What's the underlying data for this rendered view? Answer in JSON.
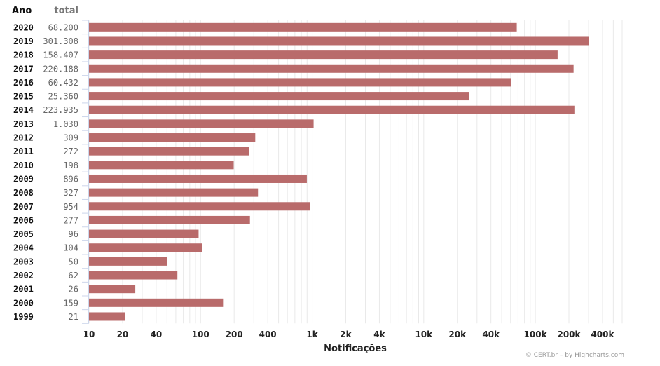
{
  "chart_data": {
    "type": "bar",
    "orientation": "horizontal",
    "x_scale": "log",
    "xlim": [
      10,
      600000
    ],
    "columns": {
      "year": "Ano",
      "total": "total"
    },
    "xlabel": "Notificações",
    "ticks": [
      {
        "value": 10,
        "label": "10"
      },
      {
        "value": 20,
        "label": "20"
      },
      {
        "value": 40,
        "label": "40"
      },
      {
        "value": 100,
        "label": "100"
      },
      {
        "value": 200,
        "label": "200"
      },
      {
        "value": 400,
        "label": "400"
      },
      {
        "value": 1000,
        "label": "1k"
      },
      {
        "value": 2000,
        "label": "2k"
      },
      {
        "value": 4000,
        "label": "4k"
      },
      {
        "value": 10000,
        "label": "10k"
      },
      {
        "value": 20000,
        "label": "20k"
      },
      {
        "value": 40000,
        "label": "40k"
      },
      {
        "value": 100000,
        "label": "100k"
      },
      {
        "value": 200000,
        "label": "200k"
      },
      {
        "value": 400000,
        "label": "400k"
      }
    ],
    "bars": [
      {
        "year": "2020",
        "total": "68.200",
        "value": 68200
      },
      {
        "year": "2019",
        "total": "301.308",
        "value": 301308
      },
      {
        "year": "2018",
        "total": "158.407",
        "value": 158407
      },
      {
        "year": "2017",
        "total": "220.188",
        "value": 220188
      },
      {
        "year": "2016",
        "total": "60.432",
        "value": 60432
      },
      {
        "year": "2015",
        "total": "25.360",
        "value": 25360
      },
      {
        "year": "2014",
        "total": "223.935",
        "value": 223935
      },
      {
        "year": "2013",
        "total": "1.030",
        "value": 1030
      },
      {
        "year": "2012",
        "total": "309",
        "value": 309
      },
      {
        "year": "2011",
        "total": "272",
        "value": 272
      },
      {
        "year": "2010",
        "total": "198",
        "value": 198
      },
      {
        "year": "2009",
        "total": "896",
        "value": 896
      },
      {
        "year": "2008",
        "total": "327",
        "value": 327
      },
      {
        "year": "2007",
        "total": "954",
        "value": 954
      },
      {
        "year": "2006",
        "total": "277",
        "value": 277
      },
      {
        "year": "2005",
        "total": "96",
        "value": 96
      },
      {
        "year": "2004",
        "total": "104",
        "value": 104
      },
      {
        "year": "2003",
        "total": "50",
        "value": 50
      },
      {
        "year": "2002",
        "total": "62",
        "value": 62
      },
      {
        "year": "2001",
        "total": "26",
        "value": 26
      },
      {
        "year": "2000",
        "total": "159",
        "value": 159
      },
      {
        "year": "1999",
        "total": "21",
        "value": 21
      }
    ],
    "bar_color": "#b96b6b",
    "grid": true,
    "legend": "none"
  },
  "credit": "© CERT.br – by Highcharts.com"
}
